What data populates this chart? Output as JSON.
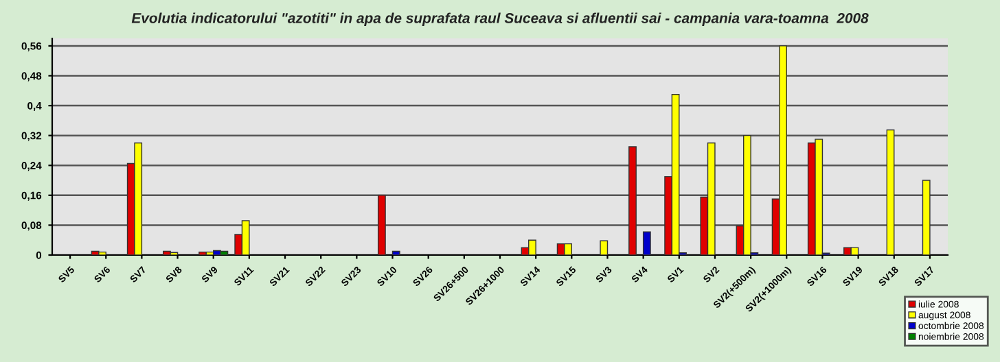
{
  "chart_data": {
    "type": "bar",
    "title": "Evolutia indicatorului \"azotiti\" in apa de suprafata raul Suceava si afluentii sai - campania vara-toamna  2008",
    "categories": [
      "SV5",
      "SV6",
      "SV7",
      "SV8",
      "SV9",
      "SV11",
      "SV21",
      "SV22",
      "SV23",
      "SV10",
      "SV26",
      "SV26+500",
      "SV26+1000",
      "SV14",
      "SV15",
      "SV3",
      "SV4",
      "SV1",
      "SV2",
      "SV2(+500m)",
      "SV2(+1000m)",
      "SV16",
      "SV19",
      "SV18",
      "SV17"
    ],
    "series": [
      {
        "name": "iulie 2008",
        "color": "#e00000",
        "values": [
          null,
          0.01,
          0.245,
          0.01,
          0.008,
          0.055,
          null,
          null,
          null,
          0.16,
          null,
          null,
          null,
          0.02,
          0.03,
          null,
          0.29,
          0.21,
          0.155,
          0.078,
          0.15,
          0.3,
          0.02,
          null,
          null
        ]
      },
      {
        "name": "august 2008",
        "color": "#ffff00",
        "values": [
          null,
          0.008,
          0.3,
          0.007,
          0.008,
          0.092,
          null,
          null,
          null,
          null,
          null,
          null,
          null,
          0.04,
          0.03,
          0.038,
          null,
          0.43,
          0.3,
          0.32,
          0.56,
          0.31,
          0.02,
          0.335,
          0.2
        ]
      },
      {
        "name": "octombrie 2008",
        "color": "#0000cc",
        "values": [
          null,
          null,
          null,
          null,
          0.012,
          null,
          null,
          null,
          null,
          0.01,
          null,
          null,
          null,
          null,
          null,
          null,
          0.062,
          0.006,
          null,
          0.006,
          null,
          0.005,
          null,
          null,
          null
        ]
      },
      {
        "name": "noiembrie 2008",
        "color": "#008000",
        "values": [
          null,
          null,
          null,
          null,
          0.01,
          null,
          null,
          null,
          null,
          null,
          null,
          null,
          null,
          null,
          null,
          null,
          null,
          null,
          null,
          null,
          null,
          null,
          null,
          null,
          null
        ]
      }
    ],
    "ylim": [
      0,
      0.58
    ],
    "yticks": [
      {
        "value": 0,
        "label": "0"
      },
      {
        "value": 0.08,
        "label": "0,08"
      },
      {
        "value": 0.16,
        "label": "0,16"
      },
      {
        "value": 0.24,
        "label": "0,24"
      },
      {
        "value": 0.32,
        "label": "0,32"
      },
      {
        "value": 0.4,
        "label": "0,4"
      },
      {
        "value": 0.48,
        "label": "0,48"
      },
      {
        "value": 0.56,
        "label": "0,56"
      }
    ],
    "grid": "y",
    "legend": "bottom right"
  }
}
